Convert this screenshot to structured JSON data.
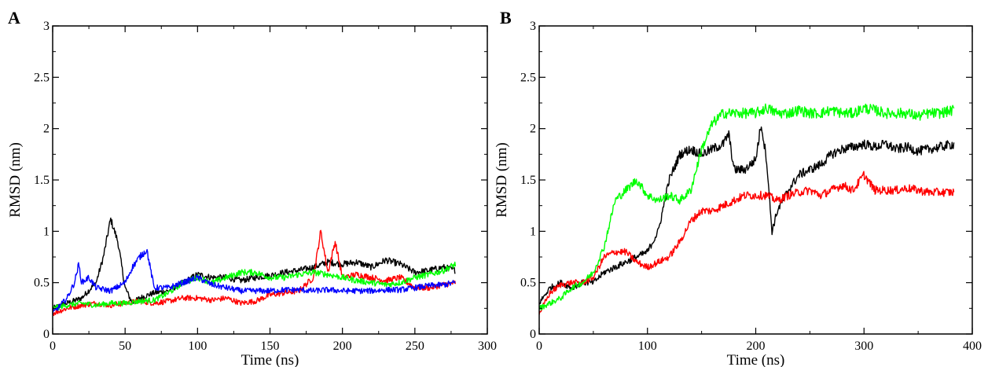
{
  "chart_data": [
    {
      "panel": "A",
      "type": "line",
      "xlabel": "Time (ns)",
      "ylabel": "RMSD (nm)",
      "xlim": [
        0,
        300
      ],
      "ylim": [
        0,
        3
      ],
      "x_ticks": [
        0,
        50,
        100,
        150,
        200,
        250,
        300
      ],
      "y_ticks": [
        0,
        0.5,
        1,
        1.5,
        2,
        2.5,
        3
      ],
      "x_tick_labels": [
        "0",
        "50",
        "100",
        "150",
        "200",
        "250",
        "300"
      ],
      "y_tick_labels": [
        "0",
        "0.5",
        "1",
        "1.5",
        "2",
        "2.5",
        "3"
      ],
      "grid": false,
      "series": [
        {
          "color": "#000000",
          "x": [
            0,
            10,
            20,
            30,
            35,
            40,
            45,
            50,
            55,
            60,
            70,
            80,
            90,
            100,
            110,
            120,
            130,
            140,
            150,
            160,
            170,
            180,
            190,
            200,
            210,
            220,
            230,
            240,
            250,
            260,
            270,
            278
          ],
          "y": [
            0.25,
            0.3,
            0.35,
            0.5,
            0.75,
            1.12,
            0.9,
            0.45,
            0.3,
            0.35,
            0.4,
            0.42,
            0.5,
            0.58,
            0.55,
            0.55,
            0.52,
            0.55,
            0.57,
            0.6,
            0.62,
            0.65,
            0.7,
            0.68,
            0.7,
            0.65,
            0.72,
            0.68,
            0.6,
            0.62,
            0.65,
            0.62
          ]
        },
        {
          "color": "#ff0000",
          "x": [
            0,
            10,
            20,
            30,
            40,
            50,
            60,
            70,
            80,
            90,
            100,
            110,
            120,
            130,
            140,
            150,
            160,
            170,
            180,
            185,
            190,
            195,
            200,
            210,
            220,
            230,
            240,
            250,
            260,
            270,
            278
          ],
          "y": [
            0.2,
            0.25,
            0.28,
            0.3,
            0.28,
            0.3,
            0.32,
            0.3,
            0.32,
            0.35,
            0.35,
            0.33,
            0.35,
            0.3,
            0.32,
            0.38,
            0.4,
            0.42,
            0.55,
            1.0,
            0.6,
            0.9,
            0.55,
            0.58,
            0.55,
            0.52,
            0.55,
            0.45,
            0.45,
            0.48,
            0.5
          ]
        },
        {
          "color": "#00ff00",
          "x": [
            0,
            10,
            20,
            30,
            40,
            50,
            60,
            70,
            80,
            90,
            100,
            110,
            120,
            130,
            140,
            150,
            160,
            170,
            180,
            190,
            200,
            210,
            220,
            230,
            240,
            250,
            260,
            270,
            278
          ],
          "y": [
            0.25,
            0.28,
            0.3,
            0.28,
            0.3,
            0.3,
            0.32,
            0.33,
            0.4,
            0.5,
            0.55,
            0.5,
            0.55,
            0.6,
            0.6,
            0.55,
            0.55,
            0.58,
            0.6,
            0.58,
            0.55,
            0.52,
            0.5,
            0.48,
            0.5,
            0.55,
            0.58,
            0.62,
            0.68
          ]
        },
        {
          "color": "#0000ff",
          "x": [
            0,
            10,
            15,
            18,
            20,
            25,
            30,
            40,
            50,
            55,
            60,
            65,
            70,
            80,
            90,
            100,
            110,
            120,
            130,
            140,
            150,
            160,
            170,
            180,
            190,
            200,
            210,
            220,
            230,
            240,
            250,
            260,
            270,
            278
          ],
          "y": [
            0.2,
            0.35,
            0.5,
            0.68,
            0.5,
            0.55,
            0.45,
            0.42,
            0.5,
            0.65,
            0.75,
            0.82,
            0.45,
            0.45,
            0.5,
            0.55,
            0.48,
            0.45,
            0.42,
            0.42,
            0.42,
            0.43,
            0.43,
            0.42,
            0.43,
            0.42,
            0.42,
            0.42,
            0.43,
            0.43,
            0.45,
            0.47,
            0.48,
            0.5
          ]
        }
      ]
    },
    {
      "panel": "B",
      "type": "line",
      "xlabel": "Time (ns)",
      "ylabel": "RMSD (nm)",
      "xlim": [
        0,
        400
      ],
      "ylim": [
        0,
        3
      ],
      "x_ticks": [
        0,
        100,
        200,
        300,
        400
      ],
      "y_ticks": [
        0,
        0.5,
        1,
        1.5,
        2,
        2.5,
        3
      ],
      "x_tick_labels": [
        "0",
        "100",
        "200",
        "300",
        "400"
      ],
      "y_tick_labels": [
        "0",
        "0.5",
        "1",
        "1.5",
        "2",
        "2.5",
        "3"
      ],
      "grid": false,
      "series": [
        {
          "color": "#000000",
          "x": [
            0,
            10,
            20,
            30,
            40,
            50,
            60,
            70,
            80,
            90,
            100,
            110,
            120,
            130,
            140,
            150,
            160,
            170,
            175,
            180,
            190,
            200,
            205,
            210,
            215,
            220,
            230,
            240,
            250,
            260,
            270,
            280,
            290,
            300,
            310,
            320,
            330,
            340,
            350,
            360,
            370,
            383
          ],
          "y": [
            0.3,
            0.45,
            0.5,
            0.45,
            0.5,
            0.5,
            0.6,
            0.65,
            0.7,
            0.75,
            0.8,
            1.0,
            1.5,
            1.75,
            1.8,
            1.75,
            1.8,
            1.85,
            1.95,
            1.6,
            1.6,
            1.7,
            2.05,
            1.7,
            1.0,
            1.2,
            1.4,
            1.55,
            1.6,
            1.65,
            1.75,
            1.8,
            1.82,
            1.85,
            1.82,
            1.85,
            1.8,
            1.82,
            1.78,
            1.8,
            1.82,
            1.85
          ]
        },
        {
          "color": "#ff0000",
          "x": [
            0,
            10,
            20,
            30,
            40,
            50,
            60,
            70,
            80,
            90,
            100,
            110,
            120,
            130,
            140,
            150,
            160,
            170,
            180,
            190,
            200,
            210,
            220,
            230,
            240,
            250,
            260,
            270,
            280,
            290,
            300,
            310,
            320,
            330,
            340,
            350,
            360,
            370,
            383
          ],
          "y": [
            0.2,
            0.4,
            0.48,
            0.5,
            0.5,
            0.55,
            0.75,
            0.8,
            0.8,
            0.7,
            0.65,
            0.7,
            0.75,
            0.9,
            1.1,
            1.2,
            1.2,
            1.25,
            1.3,
            1.35,
            1.35,
            1.35,
            1.3,
            1.35,
            1.38,
            1.4,
            1.35,
            1.4,
            1.45,
            1.4,
            1.55,
            1.4,
            1.4,
            1.4,
            1.42,
            1.4,
            1.38,
            1.38,
            1.38
          ]
        },
        {
          "color": "#00ff00",
          "x": [
            0,
            10,
            20,
            30,
            40,
            50,
            60,
            70,
            75,
            80,
            90,
            100,
            110,
            120,
            130,
            140,
            150,
            160,
            170,
            180,
            190,
            200,
            210,
            220,
            230,
            240,
            250,
            260,
            270,
            280,
            290,
            300,
            310,
            320,
            330,
            340,
            350,
            360,
            370,
            383
          ],
          "y": [
            0.25,
            0.3,
            0.35,
            0.45,
            0.5,
            0.6,
            0.85,
            1.3,
            1.35,
            1.4,
            1.5,
            1.35,
            1.3,
            1.35,
            1.3,
            1.4,
            1.8,
            2.05,
            2.15,
            2.15,
            2.15,
            2.15,
            2.2,
            2.15,
            2.15,
            2.18,
            2.15,
            2.15,
            2.18,
            2.15,
            2.15,
            2.2,
            2.18,
            2.15,
            2.15,
            2.15,
            2.12,
            2.15,
            2.15,
            2.18
          ]
        }
      ]
    }
  ]
}
